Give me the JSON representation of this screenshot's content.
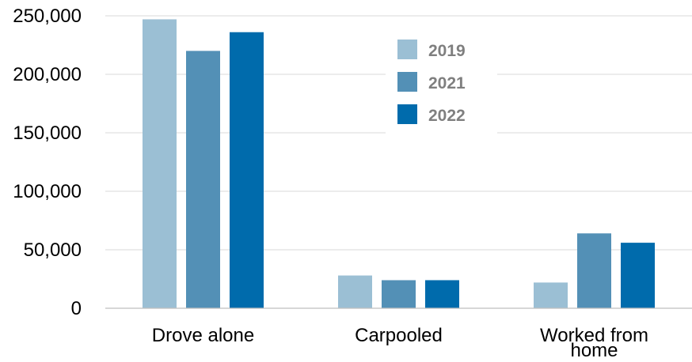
{
  "chart_data": {
    "type": "bar",
    "categories": [
      "Drove alone",
      "Carpooled",
      "Worked from home"
    ],
    "category_label_lines": [
      [
        "Drove alone"
      ],
      [
        "Carpooled"
      ],
      [
        "Worked from",
        "home"
      ]
    ],
    "series": [
      {
        "name": "2019",
        "color": "#9bbfd4",
        "values": [
          247000,
          28000,
          22000
        ]
      },
      {
        "name": "2021",
        "color": "#5390b6",
        "values": [
          220000,
          24000,
          64000
        ]
      },
      {
        "name": "2022",
        "color": "#006bac",
        "values": [
          236000,
          24000,
          56000
        ]
      }
    ],
    "ylim": [
      0,
      250000
    ],
    "yticks": [
      0,
      50000,
      100000,
      150000,
      200000,
      250000
    ],
    "ytick_labels": [
      "0",
      "50,000",
      "100,000",
      "150,000",
      "200,000",
      "250,000"
    ],
    "title": "",
    "xlabel": "",
    "ylabel": "",
    "grid": true,
    "legend_position": "top-center"
  }
}
